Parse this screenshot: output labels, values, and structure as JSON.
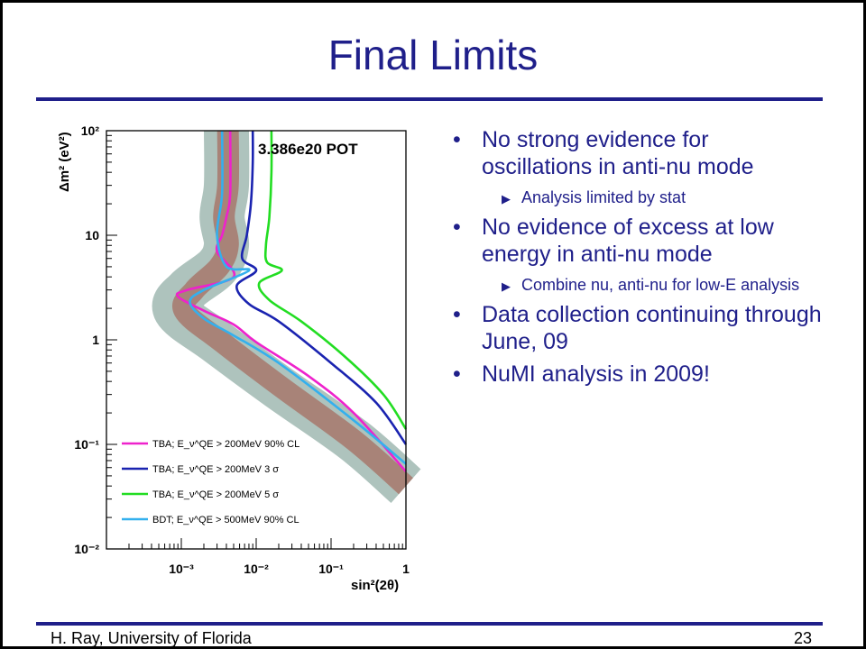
{
  "slide": {
    "title": "Final Limits",
    "footer_left": "H. Ray, University of Florida",
    "page_number": "23",
    "accent_color": "#1f1f8a"
  },
  "bullets": [
    {
      "text": "No strong evidence for oscillations in anti-nu mode",
      "subs": [
        "Analysis limited by stat"
      ]
    },
    {
      "text": "No evidence of excess at low energy in anti-nu mode",
      "subs": [
        "Combine nu, anti-nu for low-E analysis"
      ]
    },
    {
      "text": "Data collection continuing through June, 09",
      "subs": []
    },
    {
      "text": "NuMI analysis in 2009!",
      "subs": []
    }
  ],
  "chart_data": {
    "type": "line",
    "annotation": "3.386e20 POT",
    "xlabel": "sin²(2θ)",
    "ylabel": "Δm² (eV²)",
    "xscale": "log",
    "yscale": "log",
    "xlim": [
      0.0001,
      1
    ],
    "ylim": [
      0.01,
      100
    ],
    "x_ticks": [
      "10⁻³",
      "10⁻²",
      "10⁻¹",
      "1"
    ],
    "y_ticks": [
      "10⁻²",
      "10⁻¹",
      "1",
      "10",
      "10²"
    ],
    "legend_position": "bottom-left",
    "bands": [
      {
        "name": "",
        "color": "#aec3bd"
      },
      {
        "name": "",
        "color": "#a88378"
      }
    ],
    "series": [
      {
        "name": "TBA; E_ν^QE > 200MeV 90% CL",
        "color": "#ee22cc",
        "points": [
          [
            0.0045,
            100
          ],
          [
            0.0045,
            25
          ],
          [
            0.004,
            15
          ],
          [
            0.0035,
            10
          ],
          [
            0.003,
            7
          ],
          [
            0.005,
            4
          ],
          [
            0.0012,
            3
          ],
          [
            0.0009,
            2.6
          ],
          [
            0.002,
            1.9
          ],
          [
            0.005,
            1.4
          ],
          [
            0.01,
            0.95
          ],
          [
            0.05,
            0.45
          ],
          [
            0.2,
            0.2
          ],
          [
            1,
            0.055
          ]
        ]
      },
      {
        "name": "TBA; E_ν^QE > 200MeV 3 σ",
        "color": "#1a23b0",
        "points": [
          [
            0.009,
            100
          ],
          [
            0.009,
            50
          ],
          [
            0.0085,
            20
          ],
          [
            0.0075,
            10
          ],
          [
            0.0065,
            6
          ],
          [
            0.01,
            4.6
          ],
          [
            0.0055,
            3.3
          ],
          [
            0.008,
            2.2
          ],
          [
            0.02,
            1.5
          ],
          [
            0.1,
            0.6
          ],
          [
            0.4,
            0.25
          ],
          [
            1,
            0.1
          ]
        ]
      },
      {
        "name": "TBA; E_ν^QE > 200MeV 5 σ",
        "color": "#22dd22",
        "points": [
          [
            0.016,
            100
          ],
          [
            0.016,
            40
          ],
          [
            0.015,
            15
          ],
          [
            0.0135,
            8
          ],
          [
            0.014,
            5.5
          ],
          [
            0.022,
            4.6
          ],
          [
            0.011,
            3.5
          ],
          [
            0.015,
            2.4
          ],
          [
            0.04,
            1.5
          ],
          [
            0.15,
            0.7
          ],
          [
            0.5,
            0.3
          ],
          [
            1,
            0.14
          ]
        ]
      },
      {
        "name": "BDT; E_ν^QE > 500MeV 90% CL",
        "color": "#33b0ee",
        "points": [
          [
            0.0035,
            100
          ],
          [
            0.0035,
            25
          ],
          [
            0.003,
            10
          ],
          [
            0.004,
            5
          ],
          [
            0.008,
            4.6
          ],
          [
            0.002,
            3
          ],
          [
            0.0013,
            2.3
          ],
          [
            0.002,
            1.6
          ],
          [
            0.005,
            1.1
          ],
          [
            0.02,
            0.6
          ],
          [
            0.2,
            0.17
          ],
          [
            1,
            0.065
          ]
        ]
      }
    ]
  }
}
